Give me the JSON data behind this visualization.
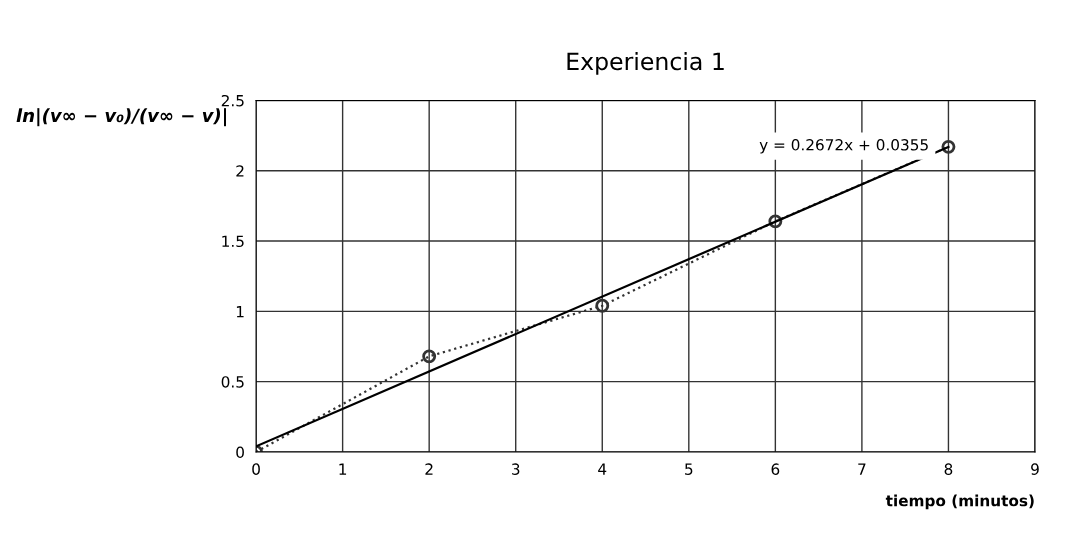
{
  "chart_data": {
    "type": "line",
    "title": "Experiencia 1",
    "xlabel": "tiempo (minutos)",
    "ylabel": "ln|(v∞ − v₀)/(v∞ − v)|",
    "series": [
      {
        "color": "#333333",
        "x": [
          0,
          2,
          4,
          6,
          8
        ],
        "values": [
          0,
          0.68,
          1.04,
          1.64,
          2.17
        ],
        "marker": "circle",
        "line_style": "dotted"
      },
      {
        "color": "#000000",
        "x": [
          0,
          8
        ],
        "values": [
          0.04,
          2.17
        ],
        "marker": "none",
        "line_style": "solid"
      }
    ],
    "annotations": [
      "y = 0.2672x + 0.0355"
    ],
    "xlim": [
      0,
      9
    ],
    "xticks": [
      0,
      1,
      2,
      3,
      4,
      5,
      6,
      7,
      8,
      9
    ],
    "ylim": [
      0,
      2.5
    ],
    "yticks": [
      0,
      0.5,
      1,
      1.5,
      2,
      2.5
    ],
    "grid": true
  }
}
